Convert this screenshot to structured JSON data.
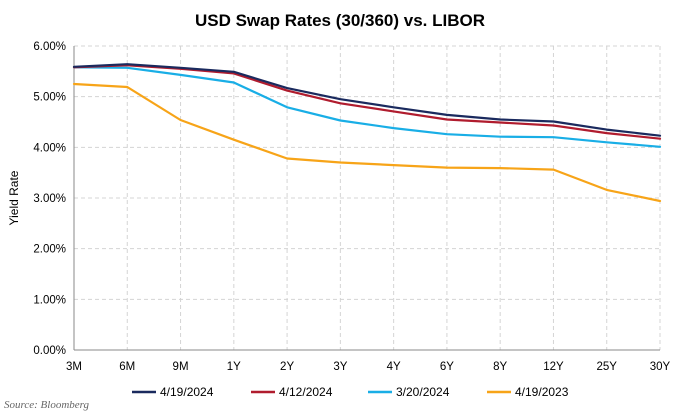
{
  "chart_data": {
    "type": "line",
    "title": "USD Swap Rates (30/360) vs. LIBOR",
    "xlabel": "",
    "ylabel": "Yield Rate",
    "source": "Source: Bloomberg",
    "categories": [
      "3M",
      "6M",
      "9M",
      "1Y",
      "2Y",
      "3Y",
      "4Y",
      "6Y",
      "8Y",
      "12Y",
      "25Y",
      "30Y"
    ],
    "y_ticks": [
      0,
      1,
      2,
      3,
      4,
      5,
      6
    ],
    "y_tick_labels": [
      "0.00%",
      "1.00%",
      "2.00%",
      "3.00%",
      "4.00%",
      "5.00%",
      "6.00%"
    ],
    "ylim": [
      0,
      6
    ],
    "grid": true,
    "legend_position": "bottom",
    "series": [
      {
        "name": "4/19/2024",
        "color": "#1a2a5e",
        "values": [
          5.59,
          5.64,
          5.57,
          5.49,
          5.17,
          4.95,
          4.79,
          4.64,
          4.55,
          4.51,
          4.35,
          4.23
        ]
      },
      {
        "name": "4/12/2024",
        "color": "#b01c2e",
        "values": [
          5.58,
          5.62,
          5.55,
          5.46,
          5.12,
          4.87,
          4.71,
          4.55,
          4.49,
          4.43,
          4.28,
          4.17
        ]
      },
      {
        "name": "3/20/2024",
        "color": "#19aee6",
        "values": [
          5.58,
          5.57,
          5.43,
          5.28,
          4.79,
          4.53,
          4.38,
          4.26,
          4.21,
          4.2,
          4.1,
          4.01
        ]
      },
      {
        "name": "4/19/2023",
        "color": "#f7a418",
        "values": [
          5.25,
          5.19,
          4.54,
          4.15,
          3.78,
          3.7,
          3.65,
          3.6,
          3.59,
          3.56,
          3.16,
          2.94
        ]
      }
    ]
  }
}
